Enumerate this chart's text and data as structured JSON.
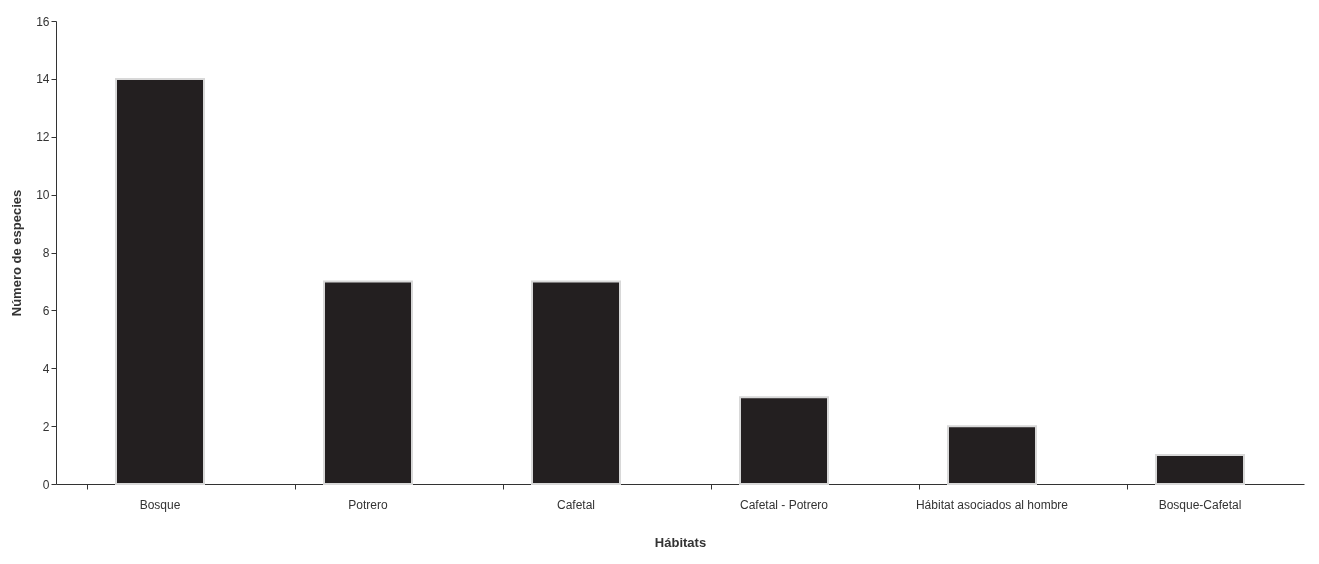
{
  "chart_data": {
    "type": "bar",
    "xlabel": "Hábitats",
    "ylabel": "Número de especies",
    "categories": [
      "Bosque",
      "Potrero",
      "Cafetal",
      "Cafetal - Potrero",
      "Hábitat asociados al hombre",
      "Bosque-Cafetal"
    ],
    "values": [
      14,
      7,
      7,
      3,
      2,
      1
    ],
    "color": "#231f20",
    "ylim": [
      0,
      16
    ],
    "yticks": [
      0,
      2,
      4,
      6,
      8,
      10,
      12,
      14,
      16
    ],
    "grid": false
  }
}
